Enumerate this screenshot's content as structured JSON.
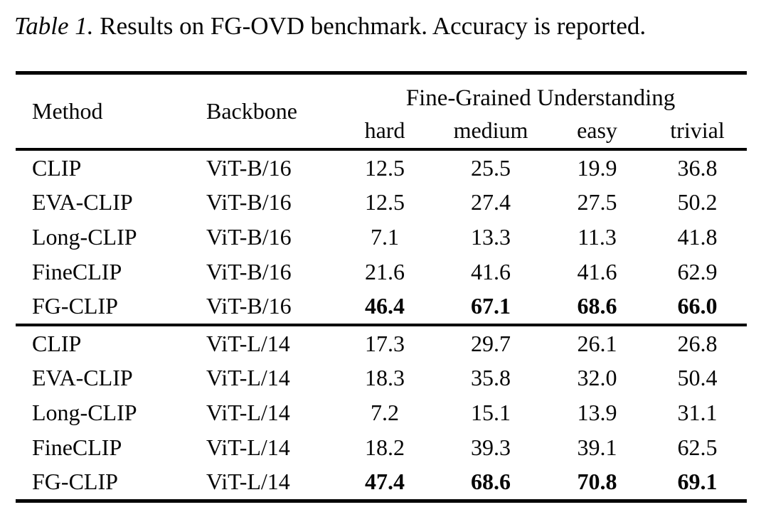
{
  "caption": {
    "label": "Table 1.",
    "text": " Results on FG-OVD benchmark. Accuracy is reported."
  },
  "table": {
    "headers": {
      "method": "Method",
      "backbone": "Backbone",
      "group": "Fine-Grained Understanding",
      "sub": [
        "hard",
        "medium",
        "easy",
        "trivial"
      ]
    },
    "groups": [
      {
        "rows": [
          {
            "method": "CLIP",
            "backbone": "ViT-B/16",
            "values": [
              "12.5",
              "25.5",
              "19.9",
              "36.8"
            ]
          },
          {
            "method": "EVA-CLIP",
            "backbone": "ViT-B/16",
            "values": [
              "12.5",
              "27.4",
              "27.5",
              "50.2"
            ]
          },
          {
            "method": "Long-CLIP",
            "backbone": "ViT-B/16",
            "values": [
              "7.1",
              "13.3",
              "11.3",
              "41.8"
            ]
          },
          {
            "method": "FineCLIP",
            "backbone": "ViT-B/16",
            "values": [
              "21.6",
              "41.6",
              "41.6",
              "62.9"
            ]
          },
          {
            "method": "FG-CLIP",
            "backbone": "ViT-B/16",
            "values": [
              "46.4",
              "67.1",
              "68.6",
              "66.0"
            ]
          }
        ]
      },
      {
        "rows": [
          {
            "method": "CLIP",
            "backbone": "ViT-L/14",
            "values": [
              "17.3",
              "29.7",
              "26.1",
              "26.8"
            ]
          },
          {
            "method": "EVA-CLIP",
            "backbone": "ViT-L/14",
            "values": [
              "18.3",
              "35.8",
              "32.0",
              "50.4"
            ]
          },
          {
            "method": "Long-CLIP",
            "backbone": "ViT-L/14",
            "values": [
              "7.2",
              "15.1",
              "13.9",
              "31.1"
            ]
          },
          {
            "method": "FineCLIP",
            "backbone": "ViT-L/14",
            "values": [
              "18.2",
              "39.3",
              "39.1",
              "62.5"
            ]
          },
          {
            "method": "FG-CLIP",
            "backbone": "ViT-L/14",
            "values": [
              "47.4",
              "68.6",
              "70.8",
              "69.1"
            ]
          }
        ]
      }
    ]
  },
  "chart_data": {
    "type": "table",
    "title": "Table 1. Results on FG-OVD benchmark. Accuracy is reported.",
    "columns": [
      "Method",
      "Backbone",
      "hard",
      "medium",
      "easy",
      "trivial"
    ],
    "column_group": {
      "label": "Fine-Grained Understanding",
      "spans": [
        "hard",
        "medium",
        "easy",
        "trivial"
      ]
    },
    "rows": [
      [
        "CLIP",
        "ViT-B/16",
        12.5,
        25.5,
        19.9,
        36.8
      ],
      [
        "EVA-CLIP",
        "ViT-B/16",
        12.5,
        27.4,
        27.5,
        50.2
      ],
      [
        "Long-CLIP",
        "ViT-B/16",
        7.1,
        13.3,
        11.3,
        41.8
      ],
      [
        "FineCLIP",
        "ViT-B/16",
        21.6,
        41.6,
        41.6,
        62.9
      ],
      [
        "FG-CLIP",
        "ViT-B/16",
        46.4,
        67.1,
        68.6,
        66.0
      ],
      [
        "CLIP",
        "ViT-L/14",
        17.3,
        29.7,
        26.1,
        26.8
      ],
      [
        "EVA-CLIP",
        "ViT-L/14",
        18.3,
        35.8,
        32.0,
        50.4
      ],
      [
        "Long-CLIP",
        "ViT-L/14",
        7.2,
        15.1,
        13.9,
        31.1
      ],
      [
        "FineCLIP",
        "ViT-L/14",
        18.2,
        39.3,
        39.1,
        62.5
      ],
      [
        "FG-CLIP",
        "ViT-L/14",
        47.4,
        68.6,
        70.8,
        69.1
      ]
    ],
    "bold_rows": [
      4,
      9
    ],
    "bold_columns_in_bold_rows": [
      "hard",
      "medium",
      "easy",
      "trivial"
    ]
  }
}
